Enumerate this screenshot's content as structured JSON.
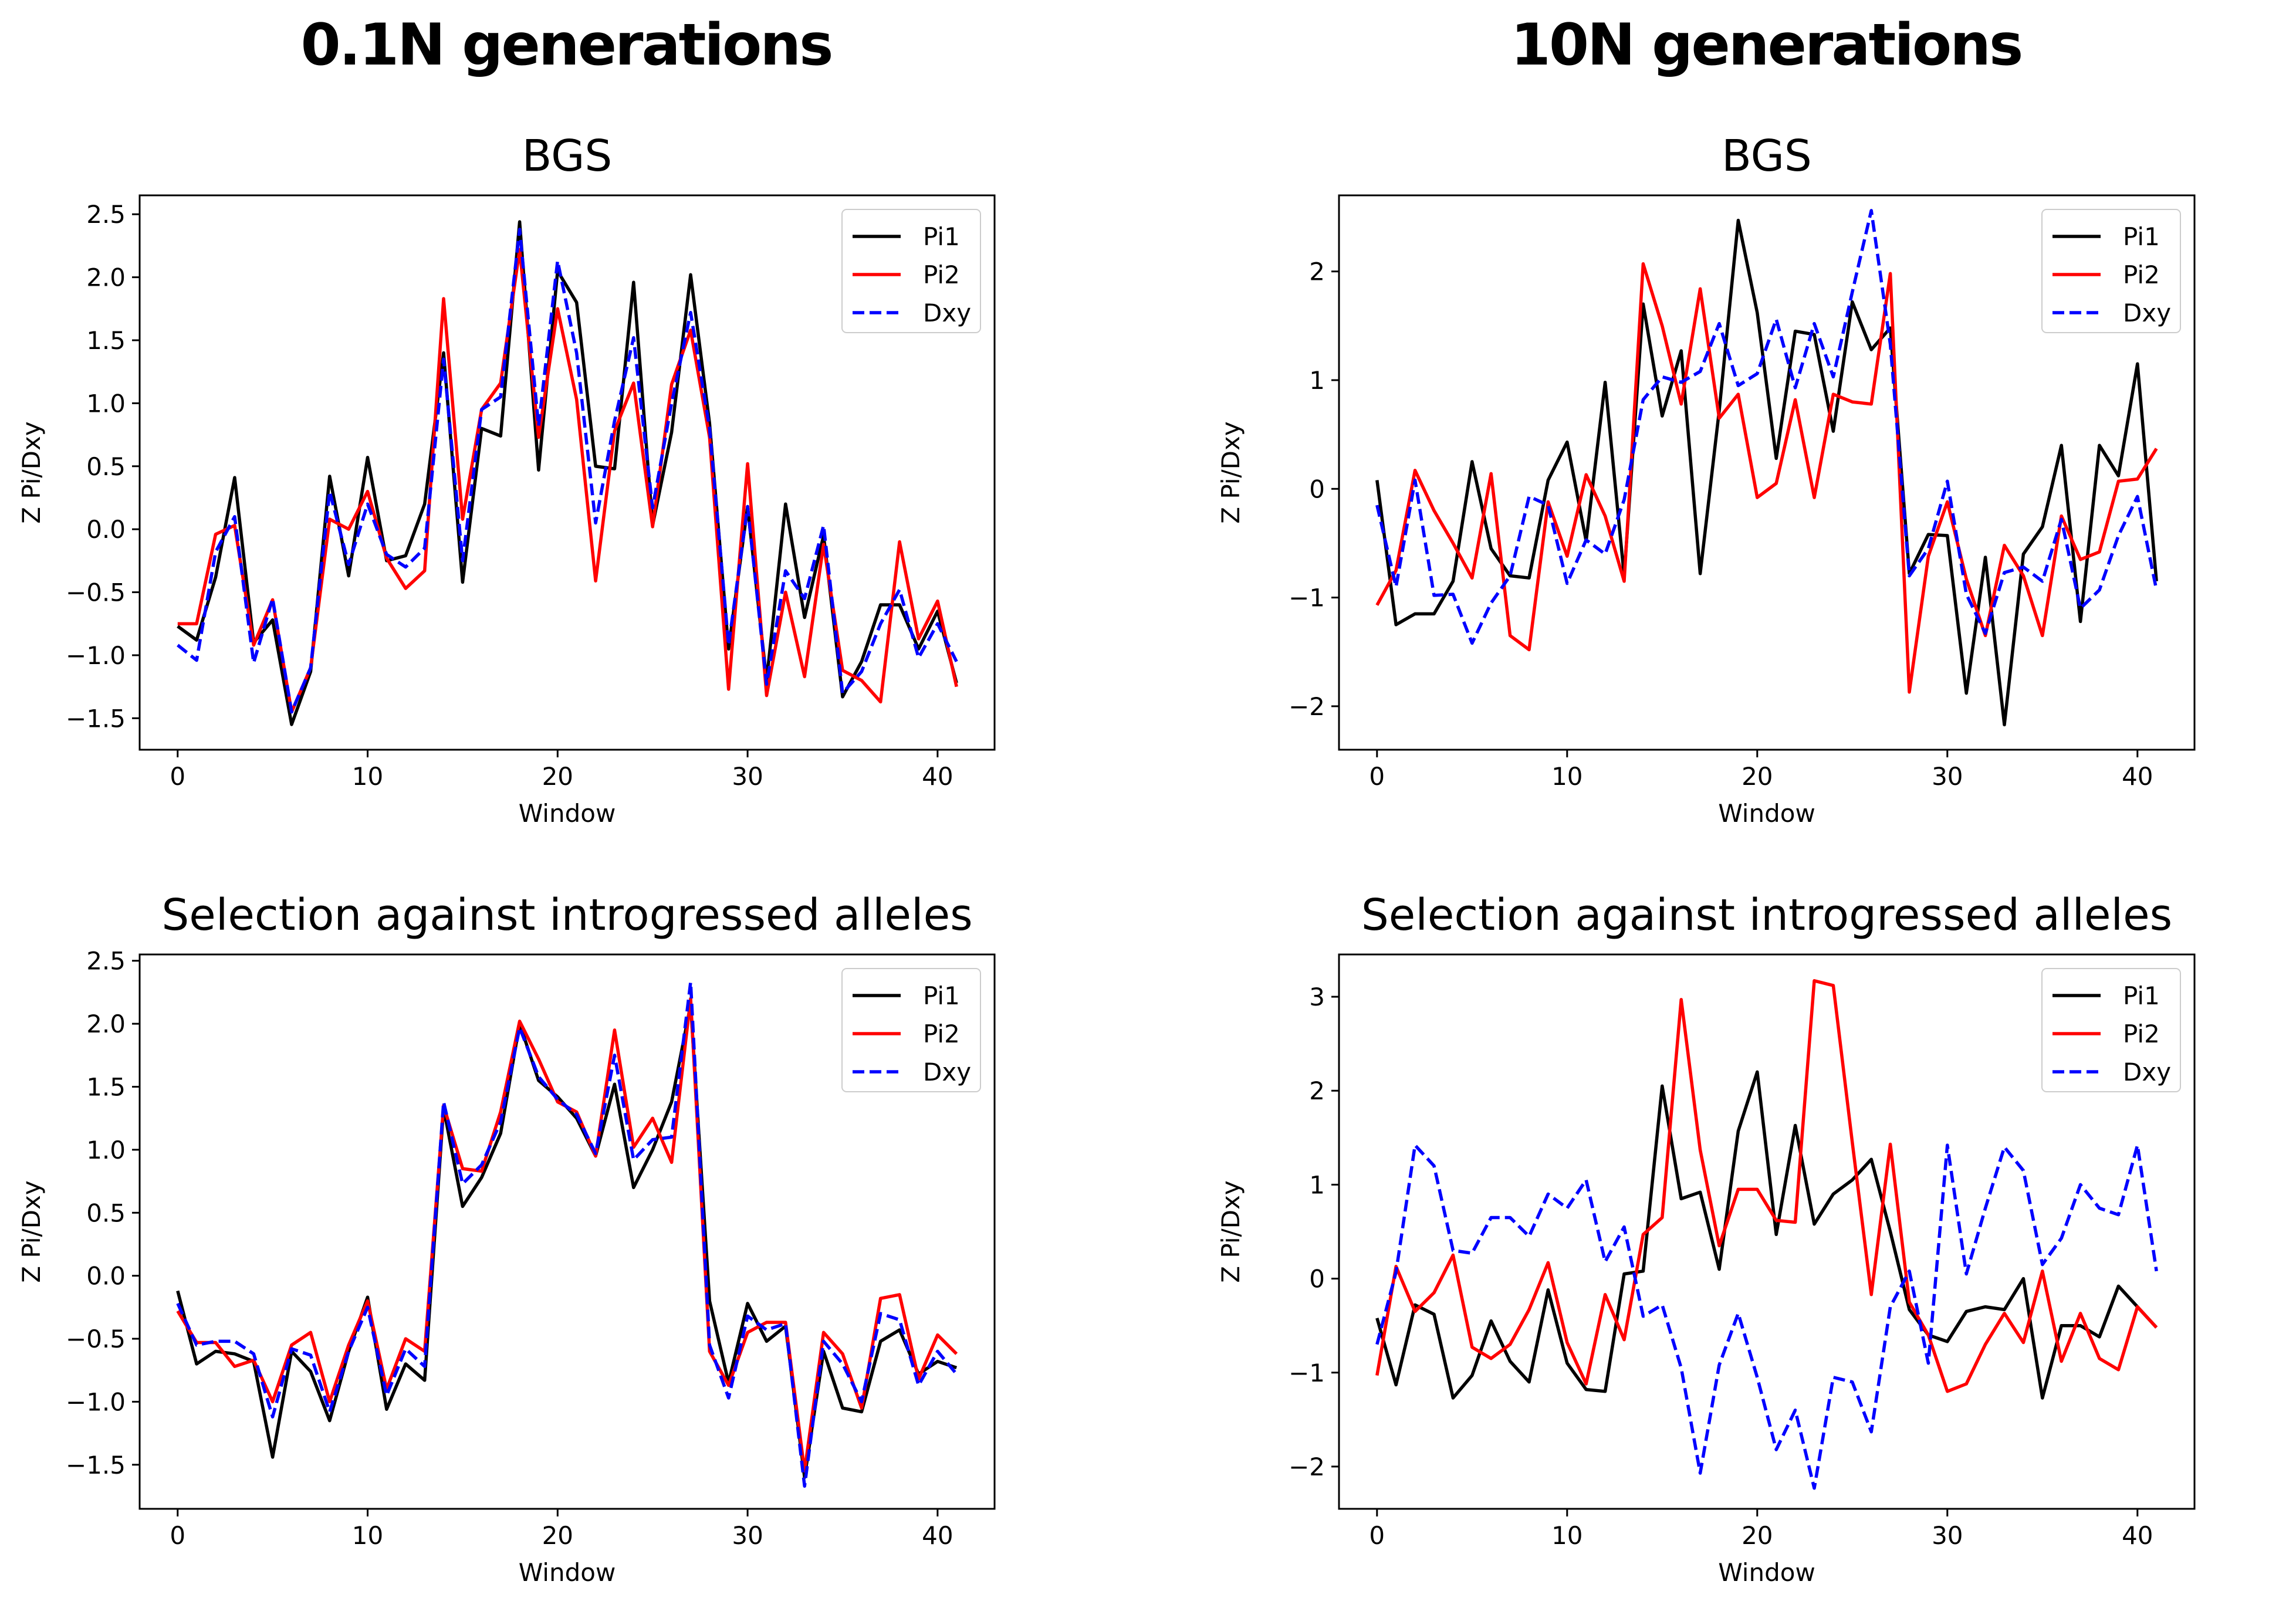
{
  "figure": {
    "column_titles": [
      "0.1N generations",
      "10N generations"
    ]
  },
  "colors": {
    "Pi1": "#000000",
    "Pi2": "#ff0000",
    "Dxy": "#0000ff"
  },
  "chart_data": [
    {
      "type": "line",
      "title": "BGS",
      "xlabel": "Window",
      "ylabel": "Z Pi/Dxy",
      "xlim": [
        -2,
        43
      ],
      "ylim": [
        -1.75,
        2.65
      ],
      "xticks": [
        0,
        10,
        20,
        30,
        40
      ],
      "yticks": [
        -1.5,
        -1.0,
        -0.5,
        0.0,
        0.5,
        1.0,
        1.5,
        2.0,
        2.5
      ],
      "yticklabels": [
        "−1.5",
        "−1.0",
        "−0.5",
        "0.0",
        "0.5",
        "1.0",
        "1.5",
        "2.0",
        "2.5"
      ],
      "legend": "upper right",
      "series": [
        {
          "name": "Pi1",
          "style": "solid",
          "values": [
            -0.77,
            -0.88,
            -0.38,
            0.41,
            -0.9,
            -0.72,
            -1.55,
            -1.13,
            0.42,
            -0.37,
            0.57,
            -0.25,
            -0.21,
            0.2,
            1.4,
            -0.42,
            0.8,
            0.74,
            2.44,
            0.47,
            2.05,
            1.8,
            0.5,
            0.48,
            1.96,
            0.03,
            0.77,
            2.02,
            0.84,
            -0.95,
            0.18,
            -1.2,
            0.2,
            -0.7,
            -0.05,
            -1.33,
            -1.05,
            -0.6,
            -0.6,
            -0.95,
            -0.65,
            -1.22
          ]
        },
        {
          "name": "Pi2",
          "style": "solid",
          "values": [
            -0.75,
            -0.75,
            -0.04,
            0.03,
            -0.92,
            -0.56,
            -1.45,
            -1.1,
            0.08,
            0.0,
            0.3,
            -0.23,
            -0.47,
            -0.33,
            1.83,
            0.08,
            0.95,
            1.16,
            2.22,
            0.73,
            1.75,
            1.03,
            -0.41,
            0.78,
            1.16,
            0.02,
            1.15,
            1.58,
            0.73,
            -1.27,
            0.52,
            -1.32,
            -0.5,
            -1.17,
            -0.12,
            -1.12,
            -1.2,
            -1.37,
            -0.1,
            -0.87,
            -0.57,
            -1.25
          ]
        },
        {
          "name": "Dxy",
          "style": "dashed",
          "values": [
            -0.92,
            -1.04,
            -0.18,
            0.1,
            -1.06,
            -0.55,
            -1.45,
            -1.1,
            0.3,
            -0.28,
            0.2,
            -0.2,
            -0.3,
            -0.15,
            1.35,
            -0.25,
            0.95,
            1.05,
            2.38,
            0.82,
            2.13,
            1.4,
            0.05,
            0.86,
            1.52,
            0.17,
            1.0,
            1.72,
            0.8,
            -0.92,
            0.18,
            -1.23,
            -0.33,
            -0.55,
            0.03,
            -1.3,
            -1.13,
            -0.75,
            -0.48,
            -1.02,
            -0.75,
            -1.05
          ]
        }
      ]
    },
    {
      "type": "line",
      "title": "BGS",
      "xlabel": "Window",
      "ylabel": "Z Pi/Dxy",
      "xlim": [
        -2,
        43
      ],
      "ylim": [
        -2.4,
        2.7
      ],
      "xticks": [
        0,
        10,
        20,
        30,
        40
      ],
      "yticks": [
        -2,
        -1,
        0,
        1,
        2
      ],
      "yticklabels": [
        "−2",
        "−1",
        "0",
        "1",
        "2"
      ],
      "legend": "upper right",
      "series": [
        {
          "name": "Pi1",
          "style": "solid",
          "values": [
            0.08,
            -1.25,
            -1.15,
            -1.15,
            -0.85,
            0.25,
            -0.55,
            -0.8,
            -0.82,
            0.08,
            0.43,
            -0.48,
            0.98,
            -0.8,
            1.7,
            0.67,
            1.27,
            -0.78,
            0.72,
            2.47,
            1.62,
            0.28,
            1.45,
            1.42,
            0.53,
            1.72,
            1.28,
            1.48,
            -0.78,
            -0.42,
            -0.43,
            -1.88,
            -0.63,
            -2.17,
            -0.6,
            -0.35,
            0.4,
            -1.22,
            0.4,
            0.12,
            1.15,
            -0.85
          ]
        },
        {
          "name": "Pi2",
          "style": "solid",
          "values": [
            -1.07,
            -0.75,
            0.17,
            -0.2,
            -0.5,
            -0.82,
            0.14,
            -1.35,
            -1.48,
            -0.12,
            -0.62,
            0.13,
            -0.25,
            -0.85,
            2.07,
            1.5,
            0.78,
            1.84,
            0.65,
            0.87,
            -0.08,
            0.05,
            0.82,
            -0.08,
            0.87,
            0.8,
            0.78,
            1.98,
            -1.87,
            -0.62,
            -0.12,
            -0.83,
            -1.35,
            -0.52,
            -0.8,
            -1.35,
            -0.25,
            -0.65,
            -0.58,
            0.07,
            0.09,
            0.37
          ]
        },
        {
          "name": "Dxy",
          "style": "dashed",
          "values": [
            -0.15,
            -0.9,
            0.08,
            -0.98,
            -0.97,
            -1.42,
            -1.05,
            -0.8,
            -0.07,
            -0.15,
            -0.87,
            -0.47,
            -0.6,
            -0.1,
            0.82,
            1.03,
            0.98,
            1.08,
            1.52,
            0.95,
            1.06,
            1.56,
            0.93,
            1.52,
            1.03,
            1.81,
            2.56,
            1.33,
            -0.8,
            -0.55,
            0.07,
            -0.97,
            -1.33,
            -0.77,
            -0.72,
            -0.85,
            -0.28,
            -1.1,
            -0.93,
            -0.43,
            -0.07,
            -0.93
          ]
        }
      ]
    },
    {
      "type": "line",
      "title": "Selection against introgressed alleles",
      "xlabel": "Window",
      "ylabel": "Z Pi/Dxy",
      "xlim": [
        -2,
        43
      ],
      "ylim": [
        -1.85,
        2.55
      ],
      "xticks": [
        0,
        10,
        20,
        30,
        40
      ],
      "yticks": [
        -1.5,
        -1.0,
        -0.5,
        0.0,
        0.5,
        1.0,
        1.5,
        2.0,
        2.5
      ],
      "yticklabels": [
        "−1.5",
        "−1.0",
        "−0.5",
        "0.0",
        "0.5",
        "1.0",
        "1.5",
        "2.0",
        "2.5"
      ],
      "legend": "upper right",
      "series": [
        {
          "name": "Pi1",
          "style": "solid",
          "values": [
            -0.12,
            -0.7,
            -0.6,
            -0.62,
            -0.68,
            -1.44,
            -0.6,
            -0.76,
            -1.15,
            -0.6,
            -0.17,
            -1.06,
            -0.7,
            -0.83,
            1.33,
            0.55,
            0.78,
            1.13,
            2.0,
            1.55,
            1.42,
            1.25,
            0.95,
            1.52,
            0.7,
            1.0,
            1.38,
            2.15,
            -0.2,
            -0.85,
            -0.22,
            -0.52,
            -0.4,
            -1.6,
            -0.6,
            -1.05,
            -1.08,
            -0.52,
            -0.43,
            -0.78,
            -0.68,
            -0.73
          ]
        },
        {
          "name": "Pi2",
          "style": "solid",
          "values": [
            -0.28,
            -0.53,
            -0.53,
            -0.72,
            -0.67,
            -1.0,
            -0.55,
            -0.45,
            -1.0,
            -0.55,
            -0.2,
            -0.9,
            -0.5,
            -0.6,
            1.35,
            0.85,
            0.83,
            1.3,
            2.02,
            1.72,
            1.38,
            1.3,
            0.95,
            1.95,
            1.02,
            1.25,
            0.9,
            2.2,
            -0.6,
            -0.87,
            -0.45,
            -0.37,
            -0.37,
            -1.55,
            -0.45,
            -0.62,
            -1.05,
            -0.18,
            -0.15,
            -0.82,
            -0.47,
            -0.62
          ]
        },
        {
          "name": "Dxy",
          "style": "dashed",
          "values": [
            -0.22,
            -0.55,
            -0.52,
            -0.52,
            -0.62,
            -1.12,
            -0.58,
            -0.63,
            -1.08,
            -0.6,
            -0.25,
            -0.95,
            -0.58,
            -0.72,
            1.38,
            0.73,
            0.88,
            1.22,
            1.97,
            1.58,
            1.4,
            1.28,
            0.97,
            1.75,
            0.92,
            1.08,
            1.1,
            2.33,
            -0.55,
            -0.97,
            -0.32,
            -0.43,
            -0.38,
            -1.67,
            -0.52,
            -0.7,
            -1.0,
            -0.3,
            -0.35,
            -0.87,
            -0.6,
            -0.78
          ]
        }
      ]
    },
    {
      "type": "line",
      "title": "Selection against introgressed alleles",
      "xlabel": "Window",
      "ylabel": "Z Pi/Dxy",
      "xlim": [
        -2,
        43
      ],
      "ylim": [
        -2.45,
        3.45
      ],
      "xticks": [
        0,
        10,
        20,
        30,
        40
      ],
      "yticks": [
        -2,
        -1,
        0,
        1,
        2,
        3
      ],
      "yticklabels": [
        "−2",
        "−1",
        "0",
        "1",
        "2",
        "3"
      ],
      "legend": "upper right",
      "series": [
        {
          "name": "Pi1",
          "style": "solid",
          "values": [
            -0.42,
            -1.13,
            -0.28,
            -0.38,
            -1.27,
            -1.03,
            -0.45,
            -0.88,
            -1.1,
            -0.12,
            -0.9,
            -1.18,
            -1.2,
            0.05,
            0.08,
            2.05,
            0.85,
            0.92,
            0.1,
            1.57,
            2.2,
            0.47,
            1.63,
            0.58,
            0.9,
            1.05,
            1.27,
            0.5,
            -0.33,
            -0.6,
            -0.67,
            -0.35,
            -0.3,
            -0.33,
            0.0,
            -1.27,
            -0.5,
            -0.5,
            -0.62,
            -0.08,
            -0.3,
            -0.52
          ]
        },
        {
          "name": "Pi2",
          "style": "solid",
          "values": [
            -1.03,
            0.13,
            -0.35,
            -0.15,
            0.25,
            -0.73,
            -0.85,
            -0.7,
            -0.33,
            0.17,
            -0.68,
            -1.12,
            -0.17,
            -0.65,
            0.47,
            0.65,
            2.97,
            1.37,
            0.35,
            0.95,
            0.95,
            0.62,
            0.6,
            3.17,
            3.12,
            1.45,
            -0.17,
            1.43,
            -0.25,
            -0.6,
            -1.2,
            -1.12,
            -0.7,
            -0.37,
            -0.68,
            0.08,
            -0.88,
            -0.37,
            -0.85,
            -0.97,
            -0.3,
            -0.52
          ]
        },
        {
          "name": "Dxy",
          "style": "dashed",
          "values": [
            -0.7,
            0.07,
            1.42,
            1.2,
            0.3,
            0.27,
            0.65,
            0.65,
            0.45,
            0.9,
            0.75,
            1.05,
            0.18,
            0.55,
            -0.4,
            -0.28,
            -0.95,
            -2.07,
            -0.92,
            -0.37,
            -1.05,
            -1.82,
            -1.4,
            -2.23,
            -1.05,
            -1.1,
            -1.63,
            -0.3,
            0.08,
            -0.9,
            1.42,
            0.05,
            0.75,
            1.4,
            1.15,
            0.15,
            0.43,
            1.0,
            0.75,
            0.68,
            1.42,
            0.08
          ]
        }
      ]
    }
  ]
}
